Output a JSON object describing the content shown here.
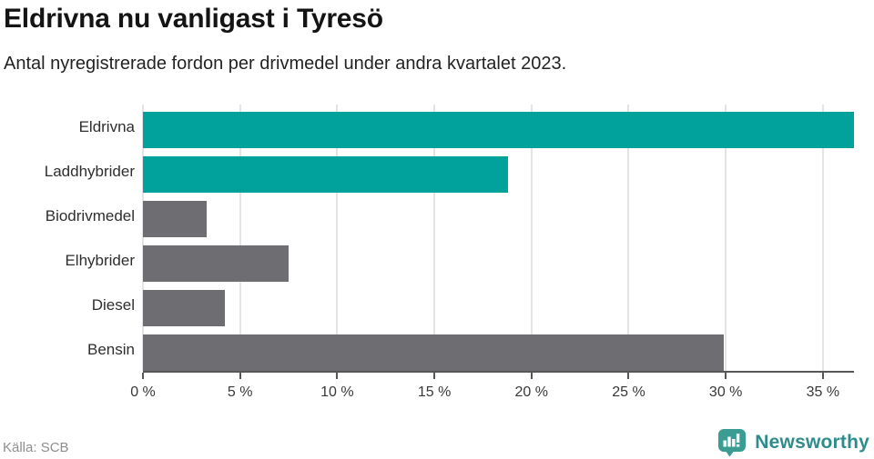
{
  "header": {
    "title": "Eldrivna nu vanligast i Tyresö",
    "subtitle": "Antal nyregistrerade fordon per drivmedel under andra kvartalet 2023."
  },
  "chart_data": {
    "type": "bar",
    "orientation": "horizontal",
    "title": "Eldrivna nu vanligast i Tyresö",
    "subtitle": "Antal nyregistrerade fordon per drivmedel under andra kvartalet 2023.",
    "categories": [
      "Eldrivna",
      "Laddhybrider",
      "Biodrivmedel",
      "Elhybrider",
      "Diesel",
      "Bensin"
    ],
    "values": [
      36.6,
      18.8,
      3.3,
      7.5,
      4.2,
      29.9
    ],
    "unit": "%",
    "bar_colors": [
      "#00a29b",
      "#00a29b",
      "#6d6d72",
      "#6d6d72",
      "#6d6d72",
      "#6d6d72"
    ],
    "highlight_color": "#00a29b",
    "default_color": "#6d6d72",
    "xlim": [
      0,
      36.6
    ],
    "ticks": [
      0,
      5,
      10,
      15,
      20,
      25,
      30,
      35
    ],
    "tick_labels": [
      "0 %",
      "5 %",
      "10 %",
      "15 %",
      "20 %",
      "25 %",
      "30 %",
      "35 %"
    ],
    "grid": true,
    "legend": "none"
  },
  "footer": {
    "source": "Källa: SCB",
    "brand": "Newsworthy",
    "brand_color": "#2f8c8c",
    "logo_color": "#3b9c93"
  }
}
